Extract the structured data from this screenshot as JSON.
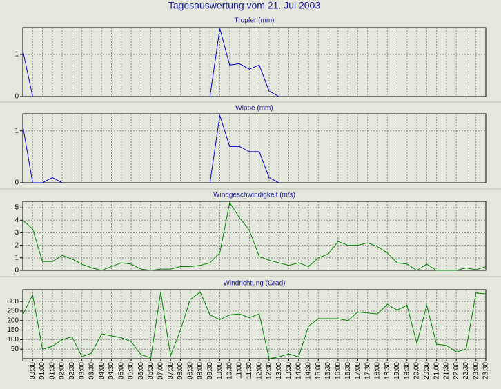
{
  "title": "Tagesauswertung vom 21. Jul 2003",
  "chart_data": [
    {
      "type": "line",
      "title": "Tropfer (mm)",
      "ylim": [
        0,
        1.64
      ],
      "yticks": [
        0,
        1
      ],
      "grid": true,
      "series": [
        {
          "name": "Tropfer",
          "color": "#0000cc",
          "values": [
            1.1,
            0,
            null,
            null,
            null,
            null,
            null,
            null,
            null,
            null,
            null,
            null,
            null,
            null,
            null,
            null,
            null,
            null,
            null,
            0,
            1.62,
            0.75,
            0.78,
            0.65,
            0.75,
            0.13,
            0,
            null,
            null,
            null,
            null,
            null,
            null,
            null,
            null,
            null,
            null,
            null,
            null,
            null,
            null,
            null,
            null,
            null,
            null,
            null,
            null,
            null
          ]
        }
      ]
    },
    {
      "type": "line",
      "title": "Wippe (mm)",
      "ylim": [
        0,
        1.33
      ],
      "yticks": [
        0,
        1
      ],
      "grid": true,
      "series": [
        {
          "name": "Wippe",
          "color": "#0000cc",
          "values": [
            1.1,
            0,
            0,
            0.1,
            0,
            null,
            null,
            null,
            null,
            null,
            null,
            null,
            null,
            null,
            null,
            null,
            null,
            null,
            null,
            0,
            1.3,
            0.7,
            0.7,
            0.6,
            0.6,
            0.1,
            0,
            null,
            null,
            null,
            null,
            null,
            null,
            null,
            null,
            null,
            null,
            null,
            null,
            null,
            null,
            null,
            null,
            null,
            null,
            null,
            null,
            null
          ]
        }
      ]
    },
    {
      "type": "line",
      "title": "Windgeschwindigkeit (m/s)",
      "ylim": [
        0,
        5.5
      ],
      "yticks": [
        0,
        1,
        2,
        3,
        4,
        5
      ],
      "grid": true,
      "series": [
        {
          "name": "Windgeschwindigkeit",
          "color": "#008000",
          "values": [
            4.0,
            3.3,
            0.7,
            0.7,
            1.2,
            0.9,
            0.5,
            0.2,
            0.0,
            0.3,
            0.6,
            0.5,
            0.1,
            0.0,
            0.1,
            0.1,
            0.3,
            0.3,
            0.4,
            0.6,
            1.4,
            5.4,
            4.2,
            3.2,
            1.1,
            0.8,
            0.6,
            0.4,
            0.6,
            0.3,
            1.0,
            1.3,
            2.3,
            2.0,
            2.0,
            2.2,
            1.9,
            1.4,
            0.6,
            0.5,
            0.0,
            0.5,
            0.0,
            0.0,
            0.0,
            0.2,
            0.05,
            0.3
          ]
        }
      ]
    },
    {
      "type": "line",
      "title": "Windrichtung (Grad)",
      "ylim": [
        0,
        362
      ],
      "yticks": [
        50,
        100,
        150,
        200,
        250,
        300
      ],
      "grid": true,
      "categories": [
        null,
        "00:30",
        "01:00",
        "01:30",
        "02:00",
        "02:30",
        "03:00",
        "03:30",
        "04:00",
        "04:30",
        "05:00",
        "05:30",
        "06:00",
        "06:30",
        "07:00",
        "07:30",
        "08:00",
        "08:30",
        "09:00",
        "09:30",
        "10:00",
        "10:30",
        "11:00",
        "11:30",
        "12:00",
        "12:30",
        "13:00",
        "13:30",
        "14:00",
        "14:30",
        "15:00",
        "15:30",
        "16:00",
        "16:30",
        "17:00",
        "17:30",
        "18:00",
        "18:30",
        "19:00",
        "19:30",
        "20:00",
        "20:30",
        "21:00",
        "21:30",
        "22:00",
        "22:30",
        "23:00",
        "23:30"
      ],
      "series": [
        {
          "name": "Windrichtung",
          "color": "#008000",
          "values": [
            230,
            335,
            50,
            65,
            100,
            115,
            10,
            30,
            130,
            120,
            110,
            90,
            20,
            5,
            350,
            15,
            150,
            310,
            350,
            230,
            205,
            230,
            235,
            215,
            235,
            0,
            10,
            25,
            10,
            170,
            210,
            210,
            210,
            200,
            245,
            240,
            235,
            285,
            255,
            280,
            80,
            280,
            75,
            70,
            35,
            50,
            345,
            340
          ]
        }
      ]
    }
  ]
}
